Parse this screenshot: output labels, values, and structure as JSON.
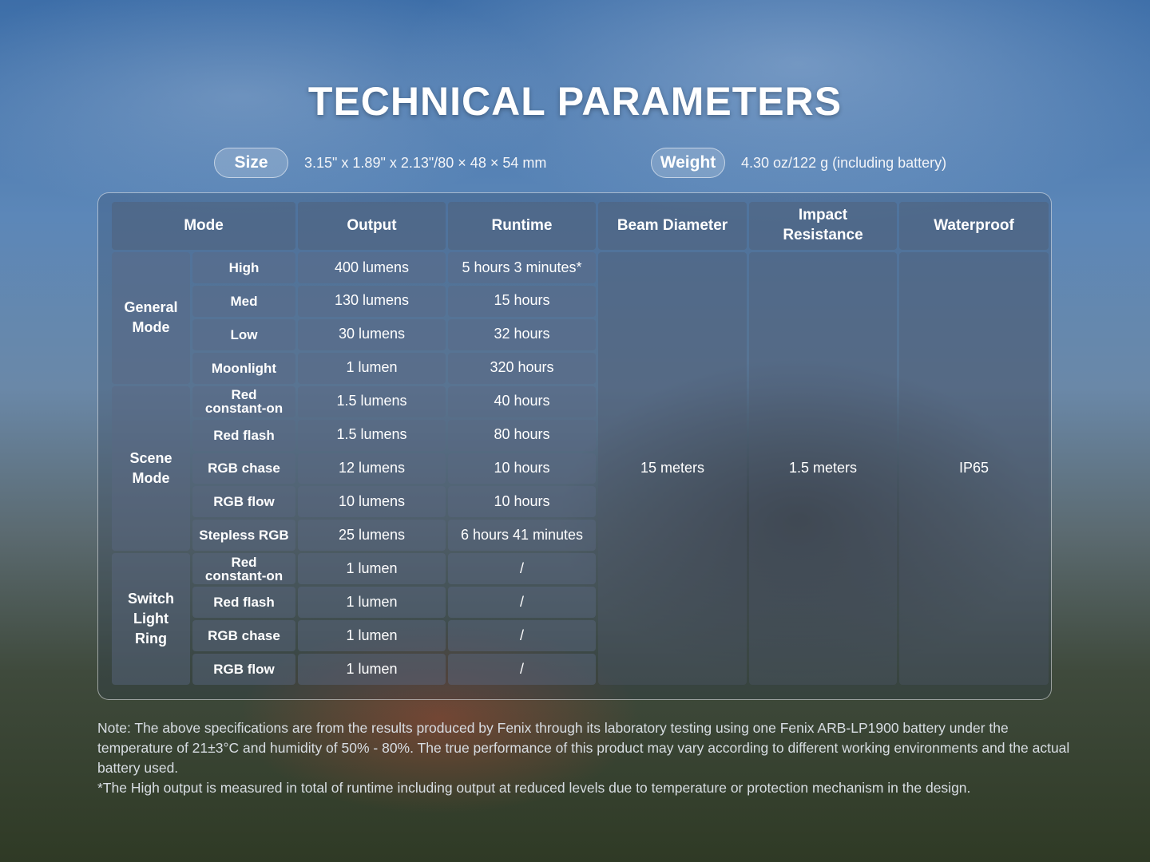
{
  "title": "TECHNICAL PARAMETERS",
  "size": {
    "label": "Size",
    "value": "3.15\" x 1.89\" x 2.13\"/80 × 48 × 54 mm"
  },
  "weight": {
    "label": "Weight",
    "value": "4.30 oz/122 g (including battery)"
  },
  "table": {
    "headers": [
      "Mode",
      "Output",
      "Runtime",
      "Beam Diameter",
      "Impact Resistance",
      "Waterproof"
    ],
    "groups": [
      "General Mode",
      "Scene Mode",
      "Switch Light Ring"
    ],
    "rows": [
      {
        "mode": "High",
        "output": "400 lumens",
        "runtime": "5 hours 3 minutes*"
      },
      {
        "mode": "Med",
        "output": "130 lumens",
        "runtime": "15 hours"
      },
      {
        "mode": "Low",
        "output": "30 lumens",
        "runtime": "32 hours"
      },
      {
        "mode": "Moonlight",
        "output": "1 lumen",
        "runtime": "320 hours"
      },
      {
        "mode": "Red constant-on",
        "output": "1.5 lumens",
        "runtime": "40 hours"
      },
      {
        "mode": "Red flash",
        "output": "1.5 lumens",
        "runtime": "80 hours"
      },
      {
        "mode": "RGB chase",
        "output": "12 lumens",
        "runtime": "10 hours"
      },
      {
        "mode": "RGB flow",
        "output": "10 lumens",
        "runtime": "10 hours"
      },
      {
        "mode": "Stepless RGB",
        "output": "25 lumens",
        "runtime": "6 hours 41 minutes"
      },
      {
        "mode": "Red constant-on",
        "output": "1 lumen",
        "runtime": "/"
      },
      {
        "mode": "Red flash",
        "output": "1 lumen",
        "runtime": "/"
      },
      {
        "mode": "RGB chase",
        "output": "1 lumen",
        "runtime": "/"
      },
      {
        "mode": "RGB flow",
        "output": "1 lumen",
        "runtime": "/"
      }
    ],
    "beam_diameter": "15 meters",
    "impact_resistance": "1.5 meters",
    "waterproof": "IP65"
  },
  "note": "Note: The above specifications are from the results produced by Fenix through its laboratory testing using one Fenix ARB-LP1900 battery under the temperature of 21±3°C and humidity of 50% - 80%. The true performance of this product may vary according to different working environments and the actual battery used.",
  "footnote": "*The High output is measured in total of runtime including output at reduced levels due to temperature or protection mechanism in the design."
}
